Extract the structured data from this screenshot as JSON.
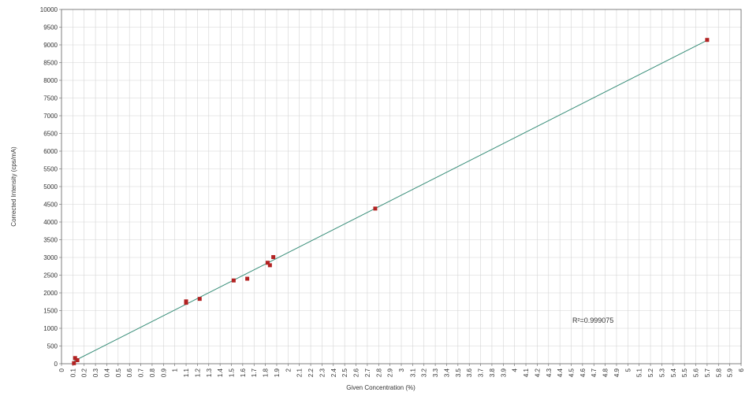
{
  "chart_data": {
    "type": "scatter",
    "xlabel": "Given Concentration (%)",
    "ylabel": "Corrected Intensity (cps/mA)",
    "xlim": [
      0,
      6
    ],
    "ylim": [
      0,
      10000
    ],
    "x_tick_step": 0.1,
    "y_tick_step": 500,
    "grid": true,
    "points": [
      {
        "x": 0.12,
        "y": 160
      },
      {
        "x": 0.14,
        "y": 100
      },
      {
        "x": 0.11,
        "y": 15
      },
      {
        "x": 1.1,
        "y": 1760
      },
      {
        "x": 1.1,
        "y": 1720
      },
      {
        "x": 1.22,
        "y": 1830
      },
      {
        "x": 1.52,
        "y": 2350
      },
      {
        "x": 1.64,
        "y": 2400
      },
      {
        "x": 1.82,
        "y": 2850
      },
      {
        "x": 1.84,
        "y": 2780
      },
      {
        "x": 1.87,
        "y": 3010
      },
      {
        "x": 2.77,
        "y": 4380
      },
      {
        "x": 5.7,
        "y": 9140
      }
    ],
    "trendline": {
      "x": [
        0.11,
        5.7
      ],
      "y": [
        75,
        9130
      ]
    },
    "annotation": "R²=0.999075",
    "colors": {
      "points": "#b22222",
      "trendline": "#3a8f7a",
      "grid": "#d4d4d4",
      "axis": "#666666"
    }
  }
}
